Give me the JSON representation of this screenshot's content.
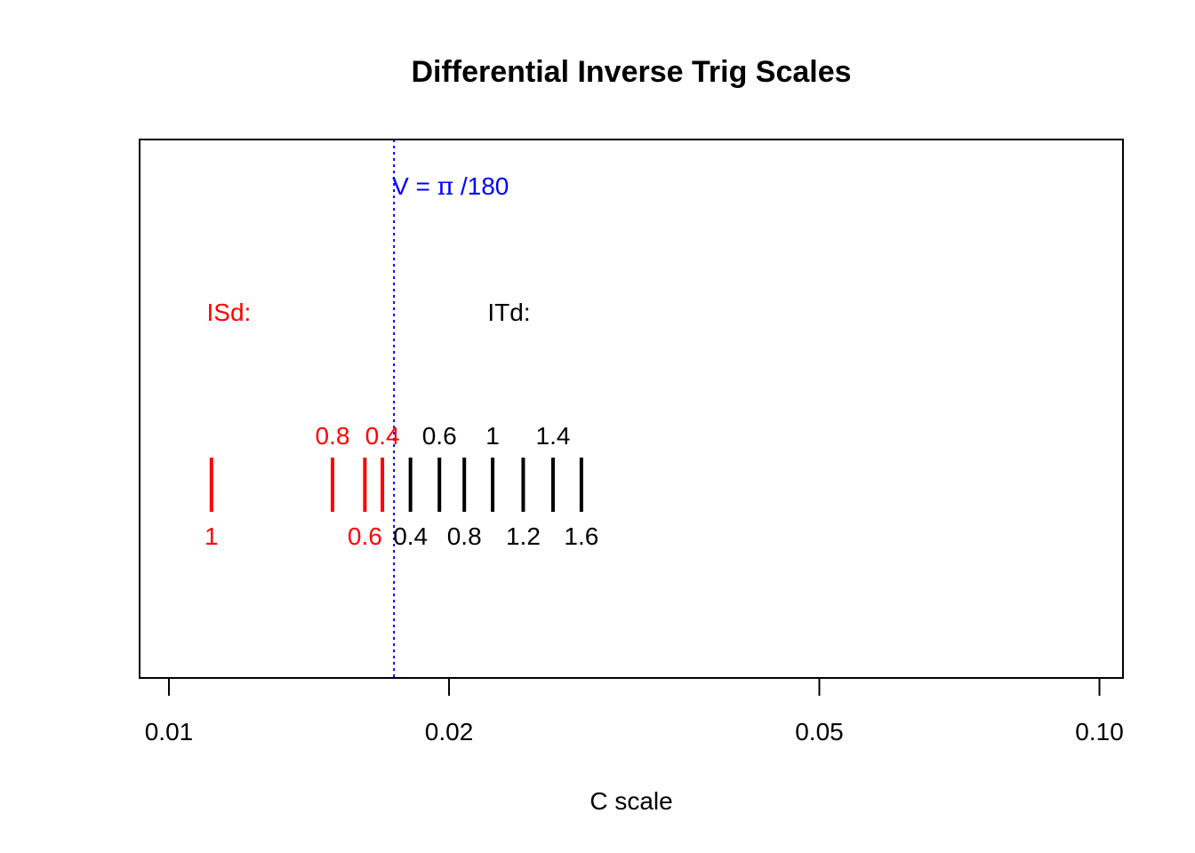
{
  "chart_data": {
    "type": "scatter",
    "title": "Differential Inverse Trig Scales",
    "xlabel": "C scale",
    "ylabel": "",
    "x_scale": "log",
    "xlim": [
      0.0093,
      0.106
    ],
    "x_ticks": [
      {
        "value": 0.01,
        "label": "0.01"
      },
      {
        "value": 0.02,
        "label": "0.02"
      },
      {
        "value": 0.05,
        "label": "0.05"
      },
      {
        "value": 0.1,
        "label": "0.10"
      }
    ],
    "grid": false,
    "colors": {
      "ISd": "#ff0000",
      "ITd": "#000000",
      "reference": "#0000ff"
    },
    "reference_line": {
      "x": 0.017453,
      "label_main": "V = ",
      "label_symbol": "π",
      "label_rest": " /180",
      "style": "dotted"
    },
    "series_labels": [
      {
        "name": "ISd",
        "text": "ISd:",
        "at_x": 0.0116
      },
      {
        "name": "ITd",
        "text": "ITd:",
        "at_x": 0.0232
      }
    ],
    "series": [
      {
        "name": "ISd",
        "color": "#ff0000",
        "ticks": [
          {
            "x": 0.01111,
            "value": "1",
            "label_pos": "below"
          },
          {
            "x": 0.01499,
            "value": "0.8",
            "label_pos": "above"
          },
          {
            "x": 0.01624,
            "value": "0.6",
            "label_pos": "below"
          },
          {
            "x": 0.01696,
            "value": "0.4",
            "label_pos": "above"
          }
        ]
      },
      {
        "name": "ITd",
        "color": "#000000",
        "ticks": [
          {
            "x": 0.01818,
            "value": "0.4",
            "label_pos": "below"
          },
          {
            "x": 0.01953,
            "value": "0.6",
            "label_pos": "above"
          },
          {
            "x": 0.02077,
            "value": "0.8",
            "label_pos": "below"
          },
          {
            "x": 0.02228,
            "value": "1",
            "label_pos": "above"
          },
          {
            "x": 0.02403,
            "value": "1.2",
            "label_pos": "below"
          },
          {
            "x": 0.02587,
            "value": "1.4",
            "label_pos": "above"
          },
          {
            "x": 0.02775,
            "value": "1.6",
            "label_pos": "below"
          }
        ]
      }
    ]
  }
}
